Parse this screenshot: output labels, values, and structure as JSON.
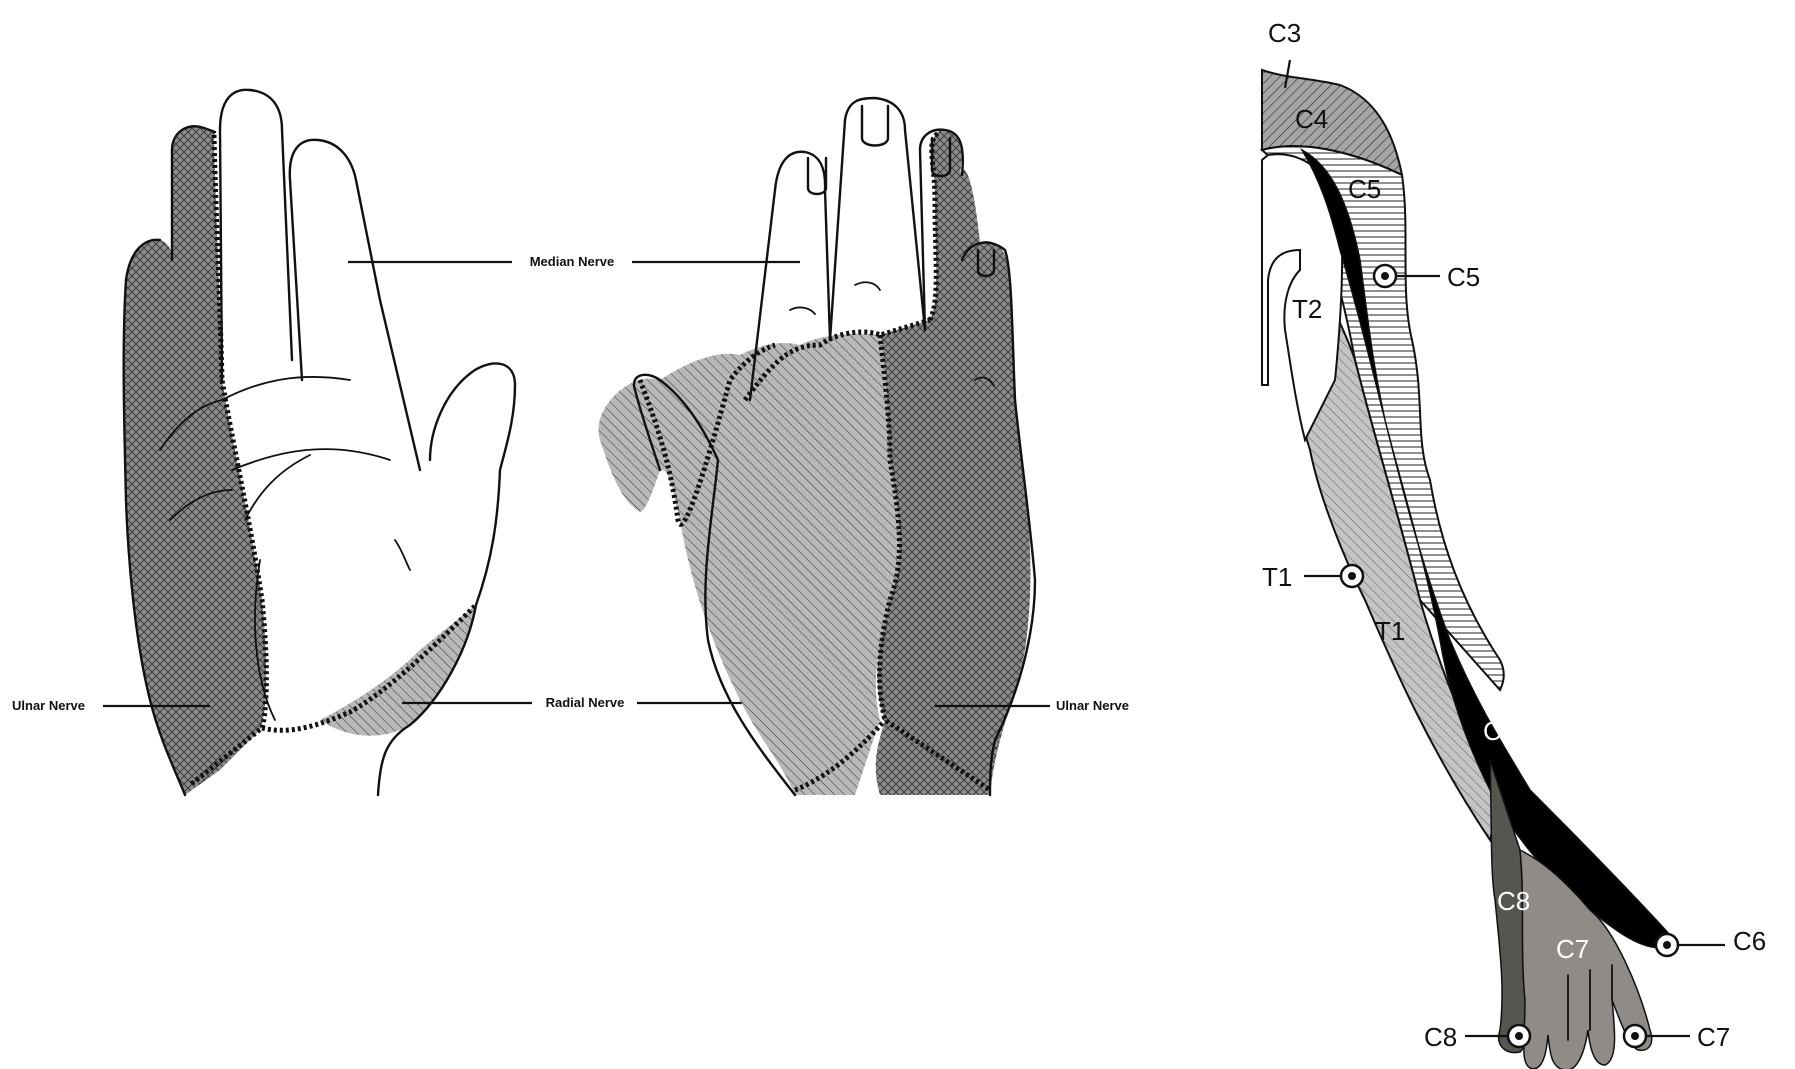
{
  "palm_hand": {
    "labels": {
      "median": "Median Nerve",
      "ulnar": "Ulnar Nerve",
      "radial": "Radial Nerve"
    }
  },
  "dorsal_hand": {
    "labels": {
      "ulnar": "Ulnar Nerve"
    }
  },
  "dermatome_arm": {
    "regions": {
      "c3": "C3",
      "c4": "C4",
      "c5": "C5",
      "t2": "T2",
      "t1": "T1",
      "c6": "C6",
      "c8": "C8",
      "c7": "C7"
    },
    "markers": {
      "c5": "C5",
      "t1": "T1",
      "c6": "C6",
      "c8": "C8",
      "c7": "C7"
    }
  },
  "colors": {
    "outline": "#111111",
    "cross_hatch_fill": "#8a8a8a",
    "diagonal_hatch_fill": "#b5b5b5",
    "c6_fill": "#000000",
    "c8_fill": "#555550",
    "c7_fill": "#8f8c87",
    "t1_fill": "#c2c2c2",
    "c4_fill": "#a0a0a0"
  }
}
